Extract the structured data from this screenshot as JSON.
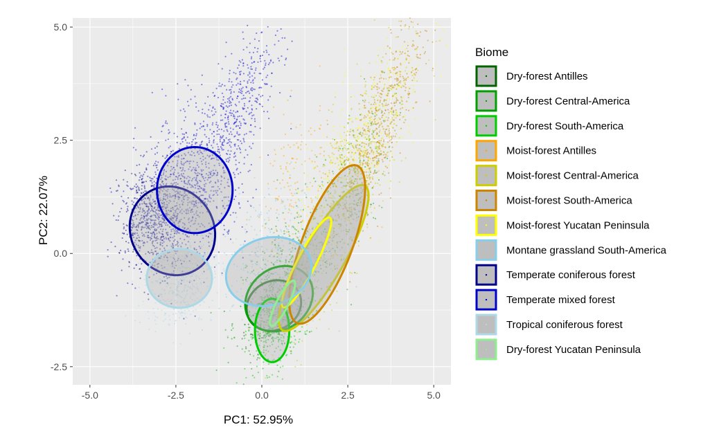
{
  "chart_data": {
    "type": "scatter",
    "xlabel": "PC1: 52.95%",
    "ylabel": "PC2: 22.07%",
    "xlim": [
      -5.5,
      5.5
    ],
    "ylim": [
      -2.9,
      5.2
    ],
    "x_ticks": [
      -5.0,
      -2.5,
      0.0,
      2.5,
      5.0
    ],
    "x_tick_labels": [
      "-5.0",
      "-2.5",
      "0.0",
      "2.5",
      "5.0"
    ],
    "y_ticks": [
      -2.5,
      0.0,
      2.5,
      5.0
    ],
    "y_tick_labels": [
      "-2.5",
      "0.0",
      "2.5",
      "5.0"
    ],
    "grid": true,
    "legend_position": "right",
    "legend_title": "Biome",
    "series": [
      {
        "name": "Dry-forest Antilles",
        "color": "#006400",
        "clusters": [
          {
            "cx": 0.3,
            "cy": -1.3,
            "sx": 0.4,
            "sy": 0.4,
            "rho": 0.3,
            "n": 250
          }
        ],
        "ellipse": {
          "cx": 0.35,
          "cy": -1.15,
          "rx": 0.8,
          "ry": 0.55,
          "angle": 10
        }
      },
      {
        "name": "Dry-forest Central-America",
        "color": "#00A000",
        "clusters": [
          {
            "cx": 0.8,
            "cy": -0.5,
            "sx": 0.8,
            "sy": 0.9,
            "rho": 0.6,
            "n": 400
          },
          {
            "cx": 2.6,
            "cy": 1.6,
            "sx": 0.6,
            "sy": 1.0,
            "rho": 0.6,
            "n": 150
          }
        ],
        "ellipse": {
          "cx": 0.5,
          "cy": -1.0,
          "rx": 1.0,
          "ry": 0.7,
          "angle": 15
        }
      },
      {
        "name": "Dry-forest South-America",
        "color": "#00CD00",
        "clusters": [
          {
            "cx": 0.4,
            "cy": -1.6,
            "sx": 0.4,
            "sy": 0.5,
            "rho": 0.3,
            "n": 300
          }
        ],
        "ellipse": {
          "cx": 0.3,
          "cy": -1.7,
          "rx": 0.5,
          "ry": 0.7,
          "angle": 0
        }
      },
      {
        "name": "Moist-forest Antilles",
        "color": "#FFA500",
        "clusters": [
          {
            "cx": 1.0,
            "cy": 1.6,
            "sx": 0.6,
            "sy": 0.9,
            "rho": 0.3,
            "n": 150
          }
        ],
        "ellipse": null
      },
      {
        "name": "Moist-forest Central-America",
        "color": "#CDCD00",
        "clusters": [
          {
            "cx": 2.5,
            "cy": 1.5,
            "sx": 0.9,
            "sy": 1.5,
            "rho": 0.8,
            "n": 700
          }
        ],
        "ellipse": {
          "cx": 1.8,
          "cy": -0.1,
          "rx": 2.0,
          "ry": 0.55,
          "angle": 52
        }
      },
      {
        "name": "Moist-forest South-America",
        "color": "#CD8500",
        "clusters": [
          {
            "cx": 3.3,
            "cy": 2.6,
            "sx": 0.7,
            "sy": 1.3,
            "rho": 0.85,
            "n": 600
          }
        ],
        "ellipse": {
          "cx": 1.9,
          "cy": 0.2,
          "rx": 1.95,
          "ry": 0.7,
          "angle": 62
        }
      },
      {
        "name": "Moist-forest Yucatan Peninsula",
        "color": "#FFFF00",
        "clusters": [
          {
            "cx": 2.8,
            "cy": 2.2,
            "sx": 1.0,
            "sy": 1.4,
            "rho": 0.8,
            "n": 400
          }
        ],
        "ellipse": {
          "cx": 1.3,
          "cy": -0.2,
          "rx": 1.2,
          "ry": 0.25,
          "angle": 55
        }
      },
      {
        "name": "Montane grassland South-America",
        "color": "#87CEEB",
        "clusters": [
          {
            "cx": 0.2,
            "cy": 0.0,
            "sx": 0.8,
            "sy": 0.7,
            "rho": 0.2,
            "n": 300
          }
        ],
        "ellipse": {
          "cx": 0.2,
          "cy": -0.4,
          "rx": 1.25,
          "ry": 0.75,
          "angle": 8
        }
      },
      {
        "name": "Temperate coniferous forest",
        "color": "#00008B",
        "clusters": [
          {
            "cx": -3.1,
            "cy": 0.8,
            "sx": 0.5,
            "sy": 0.6,
            "rho": 0.1,
            "n": 800
          }
        ],
        "ellipse": {
          "cx": -2.6,
          "cy": 0.5,
          "rx": 1.25,
          "ry": 0.97,
          "angle": -10
        }
      },
      {
        "name": "Temperate mixed forest",
        "color": "#0000CD",
        "clusters": [
          {
            "cx": -2.0,
            "cy": 1.5,
            "sx": 0.8,
            "sy": 0.9,
            "rho": 0.3,
            "n": 800
          },
          {
            "cx": -0.6,
            "cy": 3.3,
            "sx": 0.6,
            "sy": 0.9,
            "rho": 0.7,
            "n": 400
          }
        ],
        "ellipse": {
          "cx": -1.95,
          "cy": 1.4,
          "rx": 1.1,
          "ry": 0.95,
          "angle": 0
        }
      },
      {
        "name": "Tropical coniferous forest",
        "color": "#ADD8E6",
        "clusters": [
          {
            "cx": -2.4,
            "cy": -0.6,
            "sx": 0.5,
            "sy": 0.5,
            "rho": 0.2,
            "n": 400
          }
        ],
        "ellipse": {
          "cx": -2.4,
          "cy": -0.55,
          "rx": 0.95,
          "ry": 0.65,
          "angle": 0
        }
      },
      {
        "name": "Dry-forest Yucatan Peninsula",
        "color": "#90EE90",
        "clusters": [
          {
            "cx": 0.9,
            "cy": -0.7,
            "sx": 0.4,
            "sy": 0.4,
            "rho": 0.4,
            "n": 150
          }
        ],
        "ellipse": {
          "cx": 0.6,
          "cy": -1.1,
          "rx": 0.6,
          "ry": 0.16,
          "angle": 55
        }
      }
    ]
  }
}
